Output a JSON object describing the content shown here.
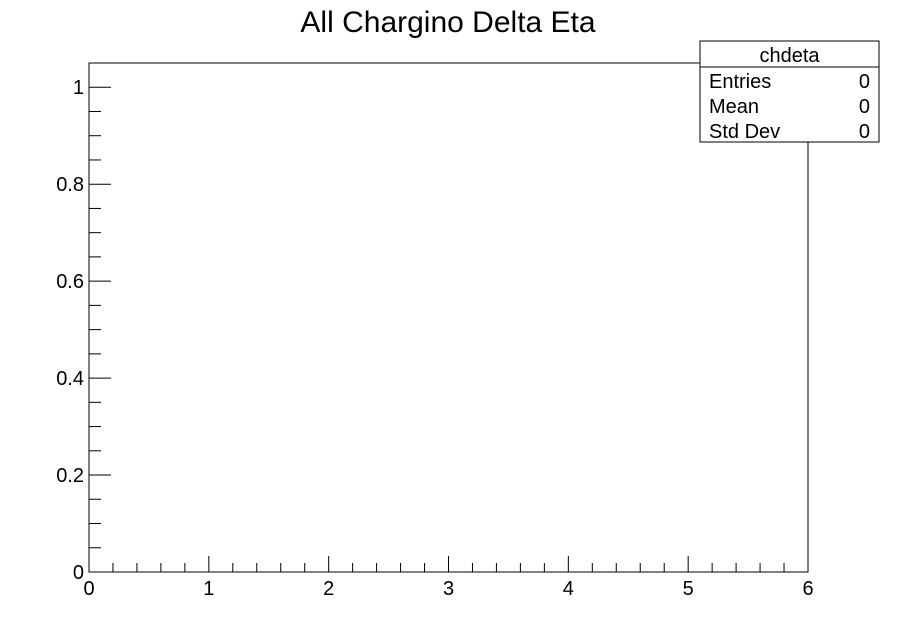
{
  "chart_data": {
    "type": "bar",
    "title": "All Chargino Delta Eta",
    "xlabel": "",
    "ylabel": "",
    "xlim": [
      0,
      6
    ],
    "ylim": [
      0,
      1.05
    ],
    "x_ticks": [
      {
        "value": 0,
        "label": "0"
      },
      {
        "value": 1,
        "label": "1"
      },
      {
        "value": 2,
        "label": "2"
      },
      {
        "value": 3,
        "label": "3"
      },
      {
        "value": 4,
        "label": "4"
      },
      {
        "value": 5,
        "label": "5"
      },
      {
        "value": 6,
        "label": "6"
      }
    ],
    "x_minor_step": 0.2,
    "y_ticks": [
      {
        "value": 0,
        "label": "0"
      },
      {
        "value": 0.2,
        "label": "0.2"
      },
      {
        "value": 0.4,
        "label": "0.4"
      },
      {
        "value": 0.6,
        "label": "0.6"
      },
      {
        "value": 0.8,
        "label": "0.8"
      },
      {
        "value": 1,
        "label": "1"
      }
    ],
    "y_minor_step": 0.05,
    "grid": false,
    "legend": "none",
    "series": [],
    "stats_box": {
      "name": "chdeta",
      "placement": "top-right",
      "rows": [
        {
          "label": "Entries",
          "value": "0"
        },
        {
          "label": "Mean",
          "value": "0"
        },
        {
          "label": "Std Dev",
          "value": "0"
        }
      ]
    },
    "colors": {
      "axis": "#000000",
      "background": "#ffffff"
    }
  }
}
